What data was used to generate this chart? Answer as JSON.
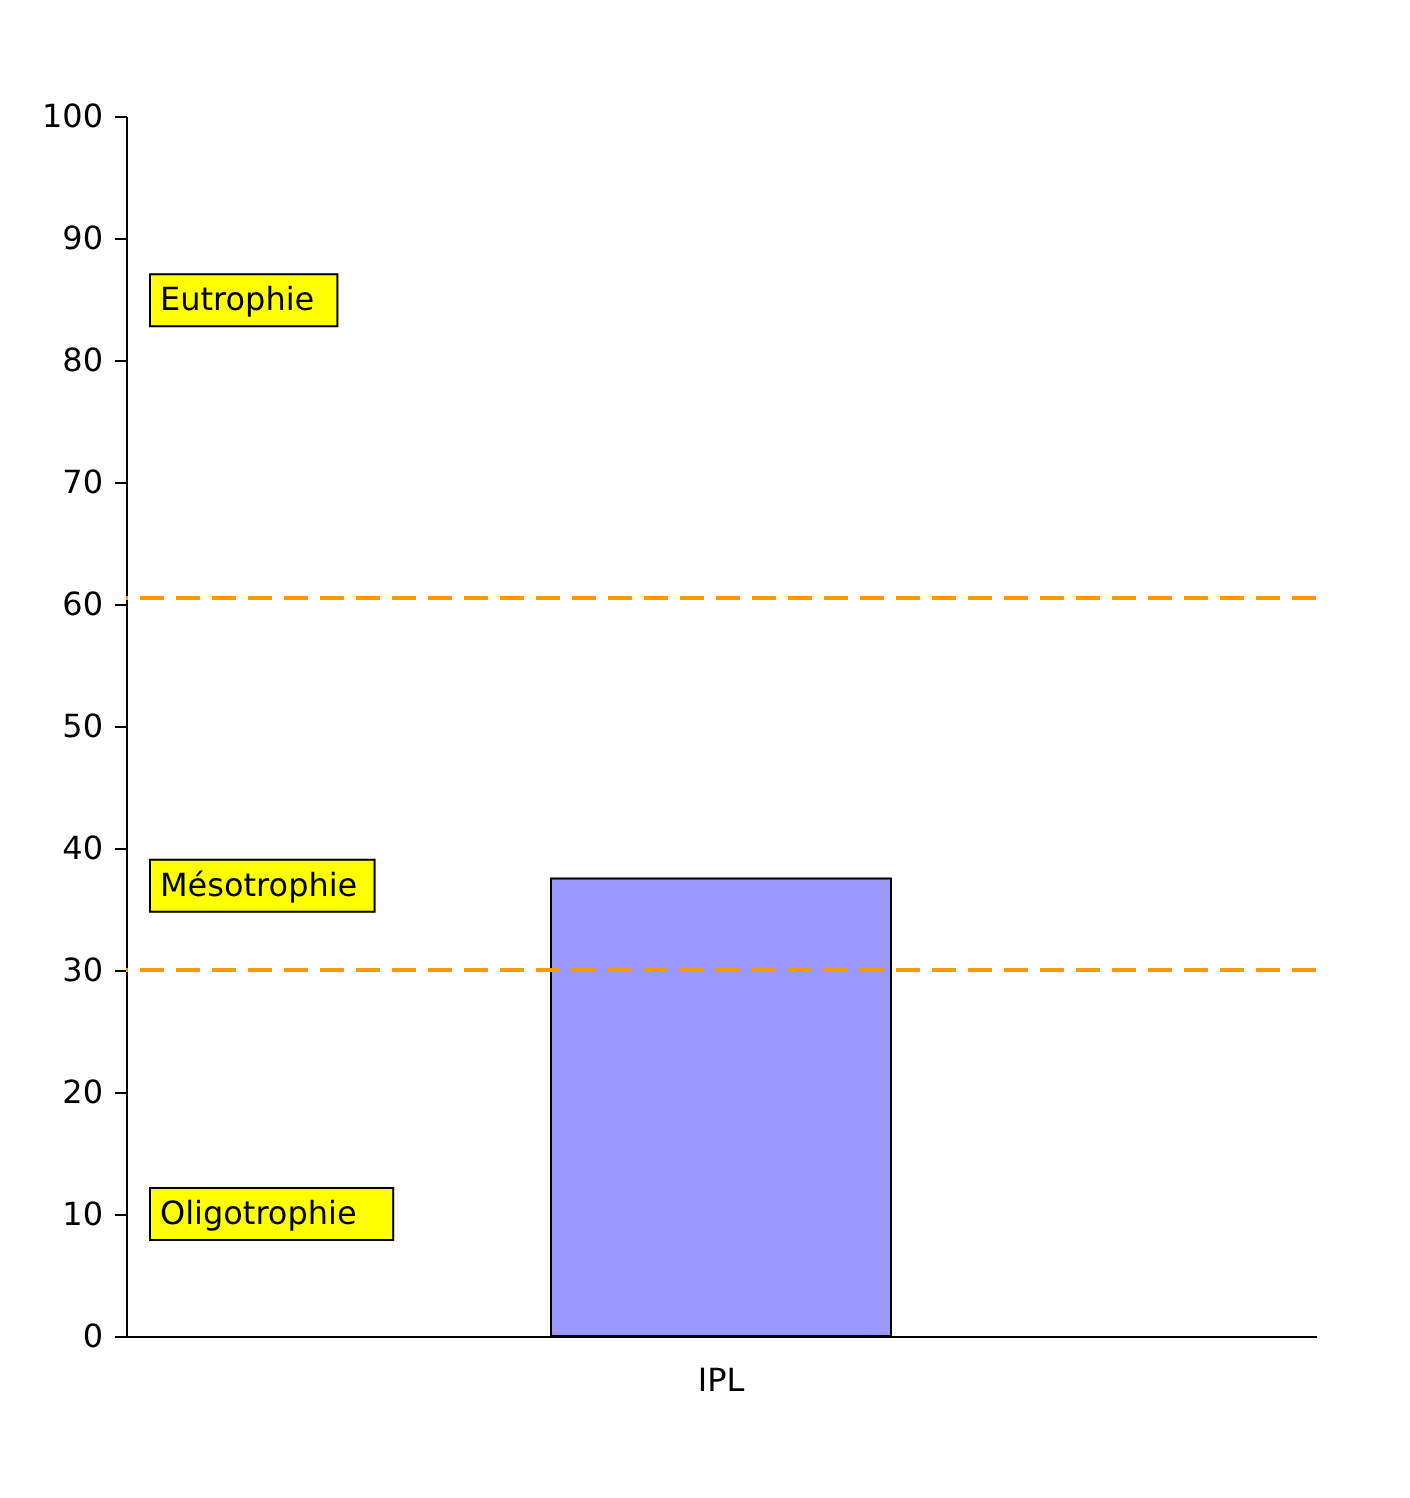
{
  "chart_data": {
    "type": "bar",
    "categories": [
      "IPL"
    ],
    "values": [
      37.5
    ],
    "color": "#9999ff",
    "ylim": [
      0,
      100
    ],
    "yticks": [
      0,
      10,
      20,
      30,
      40,
      50,
      60,
      70,
      80,
      90,
      100
    ],
    "grid": false,
    "ref_lines": [
      {
        "axis": "y",
        "value": 60.5,
        "color": "#ff9900",
        "line_style": "dashed"
      },
      {
        "axis": "y",
        "value": 30,
        "color": "#ff9900",
        "line_style": "dashed"
      }
    ],
    "annotations": [
      "Eutrophie",
      "Mésotrophie",
      "Oligotrophie"
    ]
  }
}
